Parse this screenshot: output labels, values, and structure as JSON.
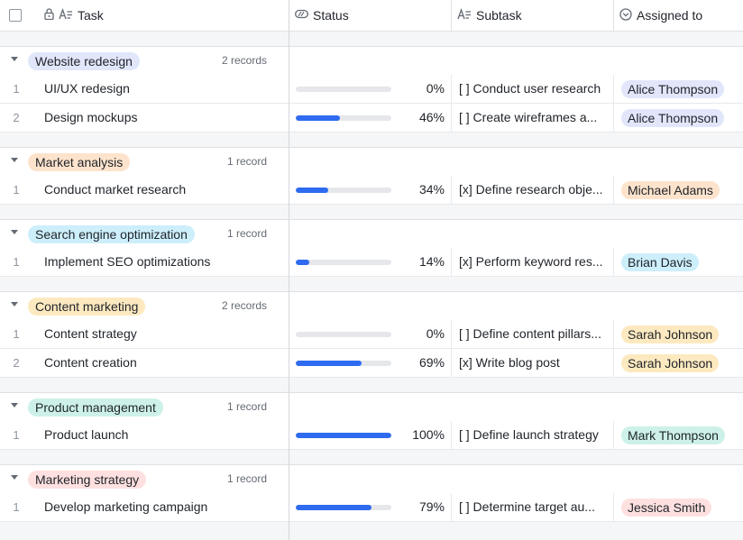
{
  "columns": {
    "task": "Task",
    "status": "Status",
    "subtask": "Subtask",
    "assigned": "Assigned to"
  },
  "groups": [
    {
      "label": "Website redesign",
      "count": "2 records",
      "tag_bg": "#e1e6fb",
      "records": [
        {
          "index": "1",
          "task": "UI/UX redesign",
          "progress": 0,
          "pct": "0%",
          "subtask": "[ ] Conduct user research",
          "assignee": "Alice Thompson",
          "assignee_bg": "#e1e6fb"
        },
        {
          "index": "2",
          "task": "Design mockups",
          "progress": 0.46,
          "pct": "46%",
          "subtask": "[ ] Create wireframes a...",
          "assignee": "Alice Thompson",
          "assignee_bg": "#e1e6fb"
        }
      ]
    },
    {
      "label": "Market analysis",
      "count": "1 record",
      "tag_bg": "#fde3cc",
      "records": [
        {
          "index": "1",
          "task": "Conduct market research",
          "progress": 0.34,
          "pct": "34%",
          "subtask": "[x] Define research obje...",
          "assignee": "Michael Adams",
          "assignee_bg": "#fde3cc"
        }
      ]
    },
    {
      "label": "Search engine optimization",
      "count": "1 record",
      "tag_bg": "#cdeefb",
      "records": [
        {
          "index": "1",
          "task": "Implement SEO optimizations",
          "progress": 0.14,
          "pct": "14%",
          "subtask": "[x] Perform keyword res...",
          "assignee": "Brian Davis",
          "assignee_bg": "#cdeefb"
        }
      ]
    },
    {
      "label": "Content marketing",
      "count": "2 records",
      "tag_bg": "#fde9c0",
      "records": [
        {
          "index": "1",
          "task": "Content strategy",
          "progress": 0,
          "pct": "0%",
          "subtask": "[ ] Define content pillars...",
          "assignee": "Sarah Johnson",
          "assignee_bg": "#fde9c0"
        },
        {
          "index": "2",
          "task": "Content creation",
          "progress": 0.69,
          "pct": "69%",
          "subtask": "[x] Write blog post",
          "assignee": "Sarah Johnson",
          "assignee_bg": "#fde9c0"
        }
      ]
    },
    {
      "label": "Product management",
      "count": "1 record",
      "tag_bg": "#cdf1e8",
      "records": [
        {
          "index": "1",
          "task": "Product launch",
          "progress": 1.0,
          "pct": "100%",
          "subtask": "[ ] Define launch strategy",
          "assignee": "Mark Thompson",
          "assignee_bg": "#cdf1e8"
        }
      ]
    },
    {
      "label": "Marketing strategy",
      "count": "1 record",
      "tag_bg": "#fde0df",
      "records": [
        {
          "index": "1",
          "task": "Develop marketing campaign",
          "progress": 0.79,
          "pct": "79%",
          "subtask": "[ ] Determine target au...",
          "assignee": "Jessica Smith",
          "assignee_bg": "#fde0df"
        }
      ]
    }
  ]
}
